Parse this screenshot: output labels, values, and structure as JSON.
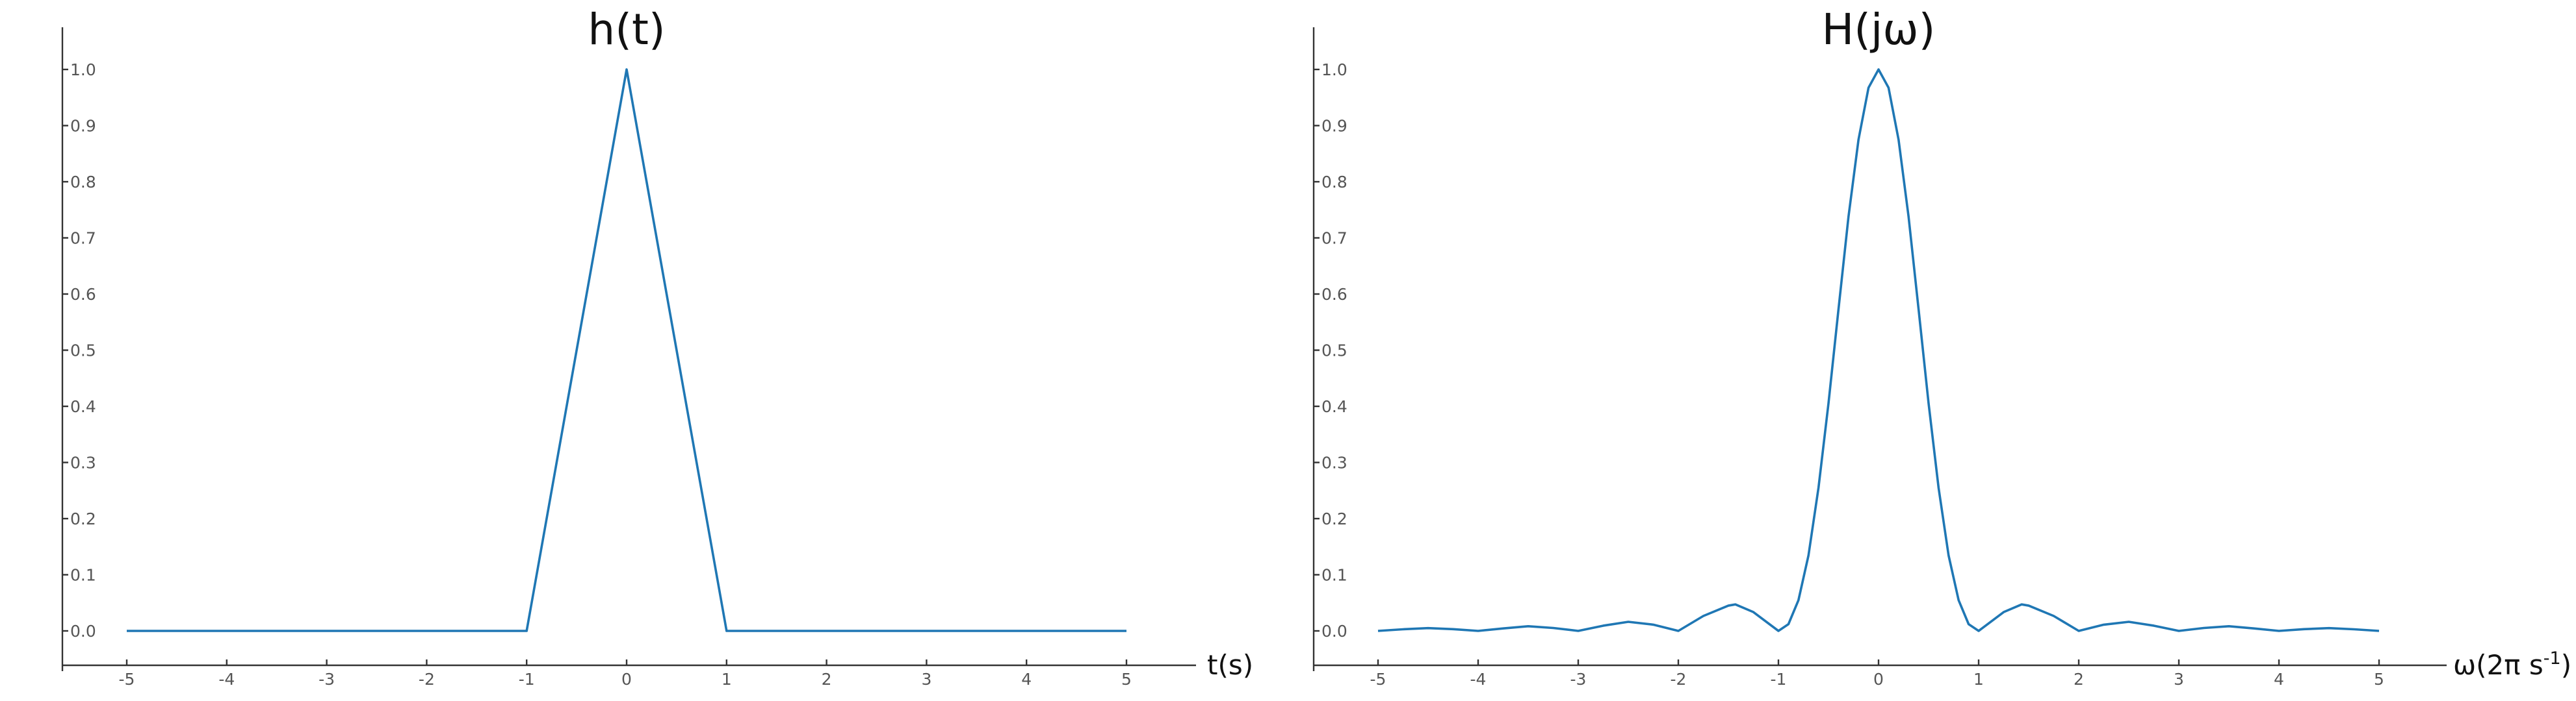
{
  "chart_data": [
    {
      "type": "line",
      "title": "h(t)",
      "xlabel": "t(s)",
      "ylabel": "",
      "xlim": [
        -5,
        5
      ],
      "ylim": [
        0,
        1
      ],
      "x_ticks": [
        -5,
        -4,
        -3,
        -2,
        -1,
        0,
        1,
        2,
        3,
        4,
        5
      ],
      "y_ticks": [
        "0.0",
        "0.1",
        "0.2",
        "0.3",
        "0.4",
        "0.5",
        "0.6",
        "0.7",
        "0.8",
        "0.9",
        "1.0"
      ],
      "grid": false,
      "color": "#1f77b4",
      "series": [
        {
          "x": [
            -5,
            -1,
            0,
            1,
            5
          ],
          "y": [
            0,
            0,
            1,
            0,
            0
          ]
        }
      ]
    },
    {
      "type": "line",
      "title": "H(jω)",
      "xlabel": "ω(2π s",
      "xlabel_sup": "-1",
      "xlabel_end": ")",
      "ylabel": "",
      "xlim": [
        -5,
        5
      ],
      "ylim": [
        0,
        1
      ],
      "x_ticks": [
        -5,
        -4,
        -3,
        -2,
        -1,
        0,
        1,
        2,
        3,
        4,
        5
      ],
      "y_ticks": [
        "0.0",
        "0.1",
        "0.2",
        "0.3",
        "0.4",
        "0.5",
        "0.6",
        "0.7",
        "0.8",
        "0.9",
        "1.0"
      ],
      "grid": false,
      "color": "#1f77b4",
      "series": [
        {
          "x": [
            -5,
            -4.75,
            -4.5,
            -4.25,
            -4,
            -3.75,
            -3.5,
            -3.25,
            -3,
            -2.75,
            -2.5,
            -2.25,
            -2,
            -1.75,
            -1.5,
            -1.43,
            -1.25,
            -1,
            -0.9,
            -0.8,
            -0.7,
            -0.6,
            -0.5,
            -0.4,
            -0.3,
            -0.2,
            -0.1,
            0,
            0.1,
            0.2,
            0.3,
            0.4,
            0.5,
            0.6,
            0.7,
            0.8,
            0.9,
            1,
            1.25,
            1.43,
            1.5,
            1.75,
            2,
            2.25,
            2.5,
            2.75,
            3,
            3.25,
            3.5,
            3.75,
            4,
            4.25,
            4.5,
            4.75,
            5
          ],
          "y": [
            0,
            0.0029,
            0.005,
            0.0031,
            0,
            0.0044,
            0.0083,
            0.0052,
            0,
            0.0093,
            0.0162,
            0.0111,
            0,
            0.0266,
            0.045,
            0.0472,
            0.0335,
            0,
            0.012,
            0.0547,
            0.1343,
            0.2546,
            0.4053,
            0.5729,
            0.7379,
            0.8751,
            0.9675,
            1,
            0.9675,
            0.8751,
            0.7379,
            0.5729,
            0.4053,
            0.2546,
            0.1343,
            0.0547,
            0.012,
            0,
            0.0335,
            0.0472,
            0.045,
            0.0266,
            0,
            0.0111,
            0.0162,
            0.0093,
            0,
            0.0052,
            0.0083,
            0.0044,
            0,
            0.0031,
            0.005,
            0.0029,
            0
          ]
        }
      ]
    }
  ]
}
